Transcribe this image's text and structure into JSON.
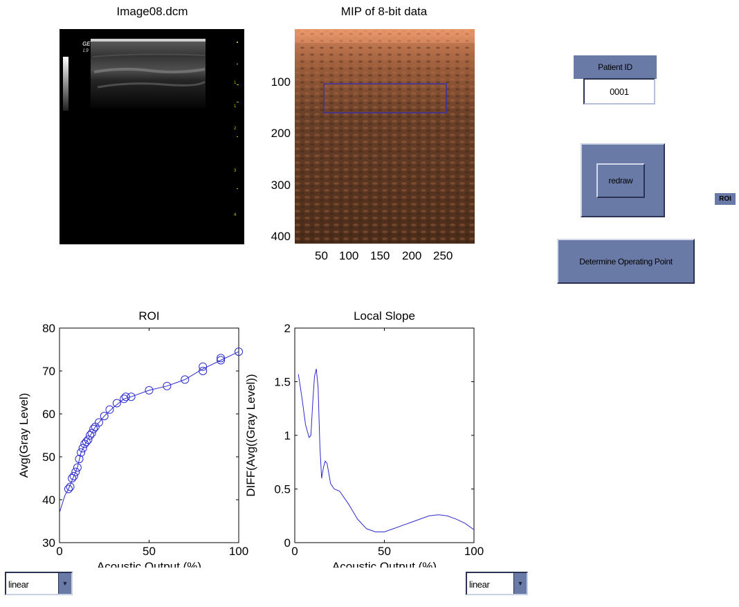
{
  "top_left": {
    "title": "Image08.dcm",
    "logo": "GE L9"
  },
  "top_mid": {
    "title": "MIP of 8-bit data",
    "y_ticks": [
      "100",
      "200",
      "300",
      "400"
    ],
    "x_ticks": [
      "50",
      "100",
      "150",
      "200",
      "250"
    ],
    "roi_color": "#2c2cc8"
  },
  "controls": {
    "patient_id_label": "Patient ID",
    "patient_id_value": "0001",
    "redraw_label": "redraw",
    "operating_point_label": "Determine Operating Point",
    "roi_badge": "ROI",
    "scale_left": "linear",
    "scale_right": "linear"
  },
  "chart_data": [
    {
      "type": "scatter",
      "title": "ROI",
      "xlabel": "Acoustic Output (%)",
      "ylabel": "Avg(Gray Level)",
      "xlim": [
        0,
        100
      ],
      "ylim": [
        30,
        80
      ],
      "x_ticks": [
        0,
        50,
        100
      ],
      "y_ticks": [
        30,
        40,
        50,
        60,
        70,
        80
      ],
      "color": "#2a2acd",
      "points": [
        [
          5,
          42.5
        ],
        [
          6,
          43
        ],
        [
          7,
          45
        ],
        [
          8,
          45.5
        ],
        [
          9,
          46.5
        ],
        [
          10,
          47.5
        ],
        [
          11,
          49.5
        ],
        [
          12,
          51
        ],
        [
          13,
          52
        ],
        [
          14,
          53
        ],
        [
          15,
          53.5
        ],
        [
          16,
          54
        ],
        [
          17,
          55
        ],
        [
          18,
          55.5
        ],
        [
          19,
          56.5
        ],
        [
          20,
          57
        ],
        [
          22,
          58
        ],
        [
          25,
          59.5
        ],
        [
          28,
          61
        ],
        [
          32,
          62.5
        ],
        [
          36,
          63.5
        ],
        [
          37,
          64
        ],
        [
          40,
          64
        ],
        [
          50,
          65.5
        ],
        [
          60,
          66.5
        ],
        [
          70,
          68
        ],
        [
          80,
          70
        ],
        [
          80,
          71
        ],
        [
          90,
          72.5
        ],
        [
          90,
          73
        ],
        [
          100,
          74.5
        ]
      ],
      "curve": [
        [
          0,
          37
        ],
        [
          3,
          41
        ],
        [
          5,
          42.5
        ],
        [
          8,
          45.5
        ],
        [
          10,
          47.5
        ],
        [
          12,
          51
        ],
        [
          15,
          53.5
        ],
        [
          18,
          55.5
        ],
        [
          20,
          57
        ],
        [
          25,
          59.5
        ],
        [
          30,
          61.5
        ],
        [
          36,
          63.5
        ],
        [
          40,
          64
        ],
        [
          50,
          65.5
        ],
        [
          60,
          66.5
        ],
        [
          70,
          68
        ],
        [
          80,
          70.5
        ],
        [
          90,
          72.5
        ],
        [
          100,
          74.5
        ]
      ]
    },
    {
      "type": "line",
      "title": "Local Slope",
      "xlabel": "Acoustic Output (%)",
      "ylabel": "DIFF(Avg((Gray Level))",
      "xlim": [
        0,
        100
      ],
      "ylim": [
        0,
        2
      ],
      "x_ticks": [
        0,
        50,
        100
      ],
      "y_ticks": [
        0,
        0.5,
        1,
        1.5,
        2
      ],
      "color": "#2a2acd",
      "points": [
        [
          2,
          1.57
        ],
        [
          4,
          1.35
        ],
        [
          6,
          1.1
        ],
        [
          8,
          0.98
        ],
        [
          9,
          1.0
        ],
        [
          10,
          1.3
        ],
        [
          11,
          1.55
        ],
        [
          12,
          1.62
        ],
        [
          13,
          1.45
        ],
        [
          14,
          0.9
        ],
        [
          15,
          0.6
        ],
        [
          16,
          0.7
        ],
        [
          17,
          0.76
        ],
        [
          18,
          0.74
        ],
        [
          20,
          0.55
        ],
        [
          22,
          0.5
        ],
        [
          25,
          0.48
        ],
        [
          30,
          0.36
        ],
        [
          35,
          0.22
        ],
        [
          40,
          0.13
        ],
        [
          45,
          0.1
        ],
        [
          50,
          0.1
        ],
        [
          55,
          0.13
        ],
        [
          60,
          0.16
        ],
        [
          65,
          0.19
        ],
        [
          70,
          0.22
        ],
        [
          75,
          0.25
        ],
        [
          80,
          0.26
        ],
        [
          85,
          0.25
        ],
        [
          90,
          0.22
        ],
        [
          95,
          0.18
        ],
        [
          100,
          0.12
        ]
      ]
    }
  ]
}
